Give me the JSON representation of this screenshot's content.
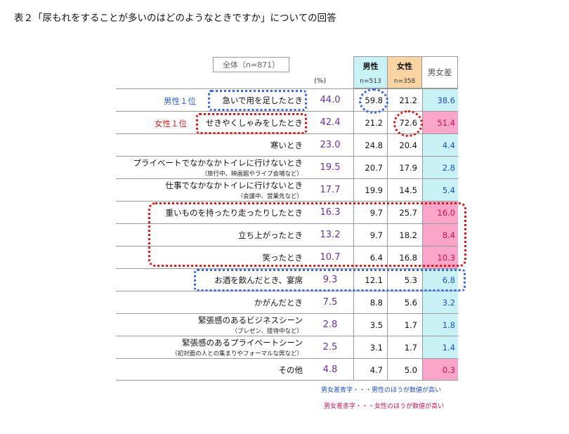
{
  "title": "表２「尿もれをすることが多いのはどのようなときですか」についての回答",
  "header": {
    "total_label": "全体（n=871）",
    "unit": "(%)",
    "male_label": "男性",
    "male_n": "n=513",
    "female_label": "女性",
    "female_n": "n=358",
    "diff_label": "男女差"
  },
  "rank_labels": {
    "male": "男性１位",
    "female": "女性１位"
  },
  "colors": {
    "male_header": "#c8f2f6",
    "female_header": "#fbd4a4",
    "blue_diff": "#c8f2f6",
    "red_diff": "#fba6c9",
    "total_text": "#6b2fa0"
  },
  "chart_data": {
    "type": "table",
    "columns": [
      "全体",
      "男性",
      "女性",
      "男女差"
    ],
    "rows": [
      {
        "label": "急いで用を足したとき",
        "sub": "",
        "total": "44.0",
        "male": "59.8",
        "female": "21.2",
        "diff": "38.6",
        "diff_color": "blue"
      },
      {
        "label": "せきやくしゃみをしたとき",
        "sub": "",
        "total": "42.4",
        "male": "21.2",
        "female": "72.6",
        "diff": "51.4",
        "diff_color": "red"
      },
      {
        "label": "寒いとき",
        "sub": "",
        "total": "23.0",
        "male": "24.8",
        "female": "20.4",
        "diff": "4.4",
        "diff_color": "blue"
      },
      {
        "label": "プライベートでなかなかトイレに行けないとき",
        "sub": "（旅行中、映画館やライブ会場など）",
        "total": "19.5",
        "male": "20.7",
        "female": "17.9",
        "diff": "2.8",
        "diff_color": "blue"
      },
      {
        "label": "仕事でなかなかトイレに行けないとき",
        "sub": "（会議中、営業先など）",
        "total": "17.7",
        "male": "19.9",
        "female": "14.5",
        "diff": "5.4",
        "diff_color": "blue"
      },
      {
        "label": "重いものを持ったり走ったりしたとき",
        "sub": "",
        "total": "16.3",
        "male": "9.7",
        "female": "25.7",
        "diff": "16.0",
        "diff_color": "red"
      },
      {
        "label": "立ち上がったとき",
        "sub": "",
        "total": "13.2",
        "male": "9.7",
        "female": "18.2",
        "diff": "8.4",
        "diff_color": "red"
      },
      {
        "label": "笑ったとき",
        "sub": "",
        "total": "10.7",
        "male": "6.4",
        "female": "16.8",
        "diff": "10.3",
        "diff_color": "red"
      },
      {
        "label": "お酒を飲んだとき、宴席",
        "sub": "",
        "total": "9.3",
        "male": "12.1",
        "female": "5.3",
        "diff": "6.8",
        "diff_color": "blue"
      },
      {
        "label": "かがんだとき",
        "sub": "",
        "total": "7.5",
        "male": "8.8",
        "female": "5.6",
        "diff": "3.2",
        "diff_color": "blue"
      },
      {
        "label": "緊張感のあるビジネスシーン",
        "sub": "（プレゼン、接待中など）",
        "total": "2.8",
        "male": "3.5",
        "female": "1.7",
        "diff": "1.8",
        "diff_color": "blue"
      },
      {
        "label": "緊張感のあるプライベートシーン",
        "sub": "（初対面の人との集まりやフォーマルな席など）",
        "total": "2.5",
        "male": "3.1",
        "female": "1.7",
        "diff": "1.4",
        "diff_color": "blue"
      },
      {
        "label": "その他",
        "sub": "",
        "total": "4.8",
        "male": "4.7",
        "female": "5.0",
        "diff": "0.3",
        "diff_color": "red"
      }
    ]
  },
  "legend": {
    "blue": "男女差青字・・・男性のほうが数値が高い",
    "red": "男女差赤字・・・女性のほうが数値が高い"
  }
}
